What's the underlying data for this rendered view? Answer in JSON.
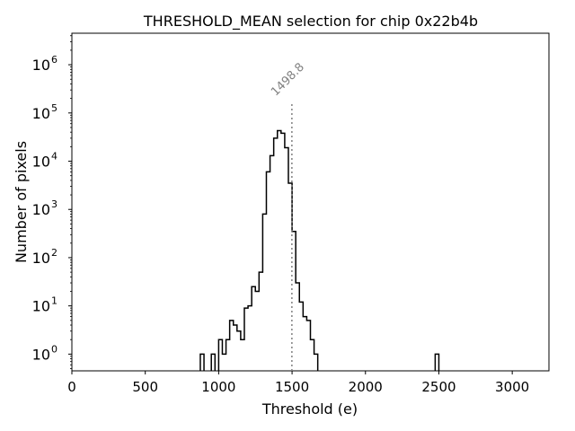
{
  "chart_data": {
    "type": "histogram",
    "title": "THRESHOLD_MEAN selection for chip 0x22b4b",
    "xlabel": "Threshold (e)",
    "ylabel": "Number of pixels",
    "xlim": [
      0,
      3250
    ],
    "ylim": [
      0.45,
      4500000
    ],
    "yscale": "log",
    "x_ticks": [
      0,
      500,
      1000,
      1500,
      2000,
      2500,
      3000
    ],
    "x_tick_labels": [
      "0",
      "500",
      "1000",
      "1500",
      "2000",
      "2500",
      "3000"
    ],
    "y_ticks": [
      1,
      10,
      100,
      1000,
      10000,
      100000,
      1000000
    ],
    "y_tick_labels": [
      {
        "base": "10",
        "exp": "0"
      },
      {
        "base": "10",
        "exp": "1"
      },
      {
        "base": "10",
        "exp": "2"
      },
      {
        "base": "10",
        "exp": "3"
      },
      {
        "base": "10",
        "exp": "4"
      },
      {
        "base": "10",
        "exp": "5"
      },
      {
        "base": "10",
        "exp": "6"
      }
    ],
    "bin_width": 25,
    "bins": [
      {
        "x": 875,
        "count": 1
      },
      {
        "x": 900,
        "count": 0
      },
      {
        "x": 925,
        "count": 0
      },
      {
        "x": 950,
        "count": 1
      },
      {
        "x": 975,
        "count": 0
      },
      {
        "x": 1000,
        "count": 2
      },
      {
        "x": 1025,
        "count": 1
      },
      {
        "x": 1050,
        "count": 2
      },
      {
        "x": 1075,
        "count": 5
      },
      {
        "x": 1100,
        "count": 4
      },
      {
        "x": 1125,
        "count": 3
      },
      {
        "x": 1150,
        "count": 2
      },
      {
        "x": 1175,
        "count": 9
      },
      {
        "x": 1200,
        "count": 10
      },
      {
        "x": 1225,
        "count": 25
      },
      {
        "x": 1250,
        "count": 20
      },
      {
        "x": 1275,
        "count": 50
      },
      {
        "x": 1300,
        "count": 800
      },
      {
        "x": 1325,
        "count": 6000
      },
      {
        "x": 1350,
        "count": 13000
      },
      {
        "x": 1375,
        "count": 30000
      },
      {
        "x": 1400,
        "count": 43000
      },
      {
        "x": 1425,
        "count": 38000
      },
      {
        "x": 1450,
        "count": 19000
      },
      {
        "x": 1475,
        "count": 3500
      },
      {
        "x": 1500,
        "count": 350
      },
      {
        "x": 1525,
        "count": 30
      },
      {
        "x": 1550,
        "count": 12
      },
      {
        "x": 1575,
        "count": 6
      },
      {
        "x": 1600,
        "count": 5
      },
      {
        "x": 1625,
        "count": 2
      },
      {
        "x": 1650,
        "count": 1
      },
      {
        "x": 2475,
        "count": 1
      }
    ],
    "marker": {
      "x": 1498.8,
      "label": "1498.8",
      "top_value": 170000,
      "color": "#808080"
    }
  }
}
